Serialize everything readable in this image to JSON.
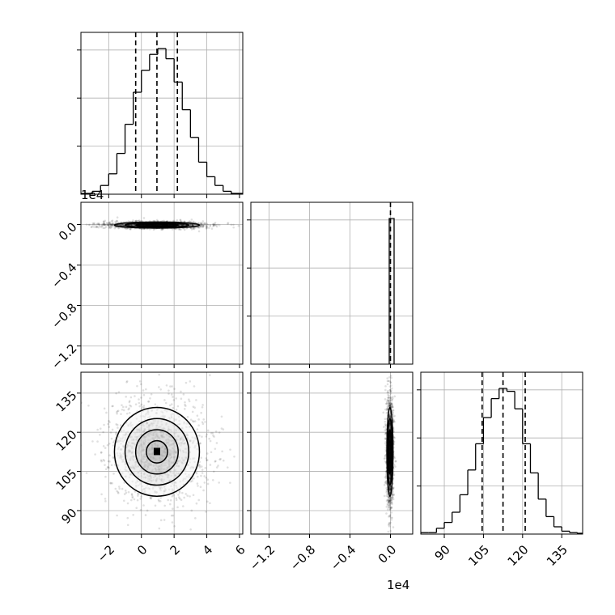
{
  "chart_data": {
    "type": "corner",
    "grid": true,
    "colors": {
      "line": "#000000",
      "grid": "#b0b0b0",
      "density": "#000000"
    },
    "params": [
      {
        "range": [
          -3.7,
          6.2
        ],
        "ticks": [
          "−2",
          "0",
          "2",
          "4",
          "6"
        ],
        "tick_values": [
          -2,
          0,
          2,
          4,
          6
        ],
        "offset": ""
      },
      {
        "range": [
          -1.38,
          0.22
        ],
        "ticks": [
          "−1.2",
          "−0.8",
          "−0.4",
          "0.0"
        ],
        "tick_values": [
          -1.2,
          -0.8,
          -0.4,
          0.0
        ],
        "offset": "1e4"
      },
      {
        "range": [
          81,
          143
        ],
        "ticks": [
          "90",
          "105",
          "120",
          "135"
        ],
        "tick_values": [
          90,
          105,
          120,
          135
        ],
        "offset": ""
      }
    ],
    "histograms": [
      {
        "param": 0,
        "bin_edges": [
          -3.0,
          -2.5,
          -2.0,
          -1.5,
          -1.0,
          -0.5,
          0.0,
          0.5,
          1.0,
          1.5,
          2.0,
          2.5,
          3.0,
          3.5,
          4.0,
          4.5,
          5.0,
          5.5
        ],
        "counts": [
          0.02,
          0.06,
          0.14,
          0.28,
          0.48,
          0.7,
          0.85,
          0.96,
          1.0,
          0.93,
          0.77,
          0.58,
          0.39,
          0.22,
          0.12,
          0.06,
          0.02
        ],
        "quantiles": [
          -0.35,
          0.95,
          2.2
        ]
      },
      {
        "param": 1,
        "bin_edges": [
          -0.012,
          0.012
        ],
        "counts": [
          1.0
        ],
        "quantiles": [
          0.0
        ]
      },
      {
        "param": 2,
        "bin_edges": [
          81,
          84,
          87,
          90,
          93,
          96,
          99,
          102,
          105,
          108,
          111,
          114,
          117,
          120,
          123,
          126,
          129,
          132,
          135,
          138,
          141
        ],
        "counts": [
          0.01,
          0.01,
          0.04,
          0.08,
          0.15,
          0.27,
          0.44,
          0.62,
          0.8,
          0.93,
          1.0,
          0.98,
          0.86,
          0.62,
          0.42,
          0.24,
          0.12,
          0.05,
          0.02,
          0.01
        ],
        "quantiles": [
          104.5,
          112.5,
          121.0
        ]
      }
    ],
    "scatter_panels": [
      {
        "x_param": 0,
        "y_param": 1,
        "center": [
          0.95,
          -0.005
        ],
        "sigma": [
          1.3,
          0.015
        ],
        "contour_levels": [
          0.5,
          1.0,
          1.5,
          2.0
        ]
      },
      {
        "x_param": 0,
        "y_param": 2,
        "center": [
          0.95,
          112.5
        ],
        "sigma": [
          1.3,
          8.5
        ],
        "contour_levels": [
          0.5,
          1.0,
          1.5,
          2.0
        ]
      },
      {
        "x_param": 1,
        "y_param": 2,
        "center": [
          -0.005,
          112.5
        ],
        "sigma": [
          0.015,
          8.5
        ],
        "contour_levels": [
          0.5,
          1.0,
          1.5,
          2.0
        ]
      }
    ]
  }
}
